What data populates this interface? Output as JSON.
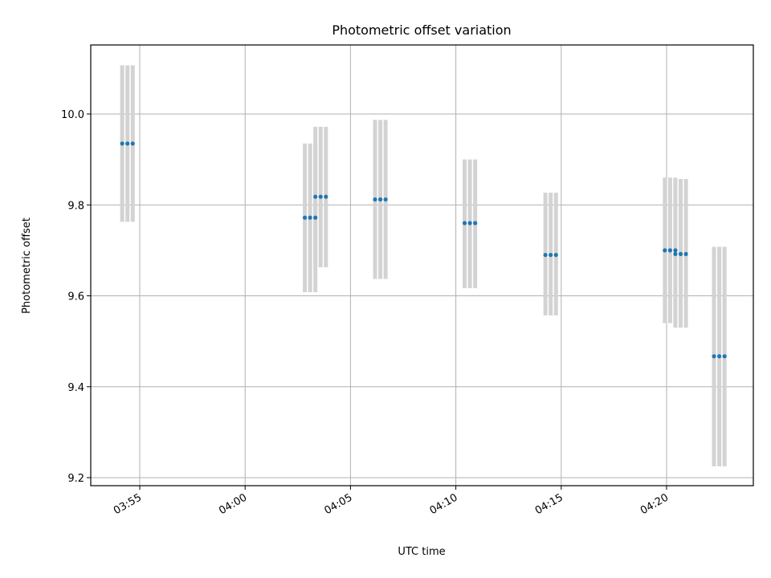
{
  "chart_data": {
    "type": "scatter",
    "title": "Photometric offset variation",
    "xlabel": "UTC time",
    "ylabel": "Photometric offset",
    "x_ticks": [
      "03:55",
      "04:00",
      "04:05",
      "04:10",
      "04:15",
      "04:20"
    ],
    "y_ticks": [
      "9.2",
      "9.4",
      "9.6",
      "9.8",
      "10.0"
    ],
    "ylim": [
      9.18,
      10.15
    ],
    "grid": true,
    "colors": {
      "points": "#1f77b4",
      "errorbars": "#d3d3d3",
      "grid": "#b0b0b0"
    },
    "points": [
      {
        "x": "03:54:10",
        "y": 9.935,
        "err_low": 9.763,
        "err_high": 10.107
      },
      {
        "x": "03:54:25",
        "y": 9.935,
        "err_low": 9.763,
        "err_high": 10.107
      },
      {
        "x": "03:54:40",
        "y": 9.935,
        "err_low": 9.763,
        "err_high": 10.107
      },
      {
        "x": "04:02:50",
        "y": 9.772,
        "err_low": 9.608,
        "err_high": 9.935
      },
      {
        "x": "04:03:05",
        "y": 9.772,
        "err_low": 9.608,
        "err_high": 9.935
      },
      {
        "x": "04:03:20",
        "y": 9.772,
        "err_low": 9.608,
        "err_high": 9.935
      },
      {
        "x": "04:03:20",
        "y": 9.818,
        "err_low": 9.663,
        "err_high": 9.972
      },
      {
        "x": "04:03:35",
        "y": 9.818,
        "err_low": 9.663,
        "err_high": 9.972
      },
      {
        "x": "04:03:50",
        "y": 9.818,
        "err_low": 9.663,
        "err_high": 9.972
      },
      {
        "x": "04:06:10",
        "y": 9.812,
        "err_low": 9.637,
        "err_high": 9.987
      },
      {
        "x": "04:06:25",
        "y": 9.812,
        "err_low": 9.637,
        "err_high": 9.987
      },
      {
        "x": "04:06:40",
        "y": 9.812,
        "err_low": 9.637,
        "err_high": 9.987
      },
      {
        "x": "04:10:25",
        "y": 9.76,
        "err_low": 9.617,
        "err_high": 9.9
      },
      {
        "x": "04:10:40",
        "y": 9.76,
        "err_low": 9.617,
        "err_high": 9.9
      },
      {
        "x": "04:10:55",
        "y": 9.76,
        "err_low": 9.617,
        "err_high": 9.9
      },
      {
        "x": "04:14:15",
        "y": 9.69,
        "err_low": 9.557,
        "err_high": 9.827
      },
      {
        "x": "04:14:30",
        "y": 9.69,
        "err_low": 9.557,
        "err_high": 9.827
      },
      {
        "x": "04:14:45",
        "y": 9.69,
        "err_low": 9.557,
        "err_high": 9.827
      },
      {
        "x": "04:19:55",
        "y": 9.7,
        "err_low": 9.54,
        "err_high": 9.86
      },
      {
        "x": "04:20:10",
        "y": 9.7,
        "err_low": 9.54,
        "err_high": 9.86
      },
      {
        "x": "04:20:25",
        "y": 9.7,
        "err_low": 9.54,
        "err_high": 9.86
      },
      {
        "x": "04:20:25",
        "y": 9.692,
        "err_low": 9.53,
        "err_high": 9.857
      },
      {
        "x": "04:20:40",
        "y": 9.692,
        "err_low": 9.53,
        "err_high": 9.857
      },
      {
        "x": "04:20:55",
        "y": 9.692,
        "err_low": 9.53,
        "err_high": 9.857
      },
      {
        "x": "04:22:15",
        "y": 9.467,
        "err_low": 9.225,
        "err_high": 9.708
      },
      {
        "x": "04:22:30",
        "y": 9.467,
        "err_low": 9.225,
        "err_high": 9.708
      },
      {
        "x": "04:22:45",
        "y": 9.467,
        "err_low": 9.225,
        "err_high": 9.708
      }
    ]
  }
}
